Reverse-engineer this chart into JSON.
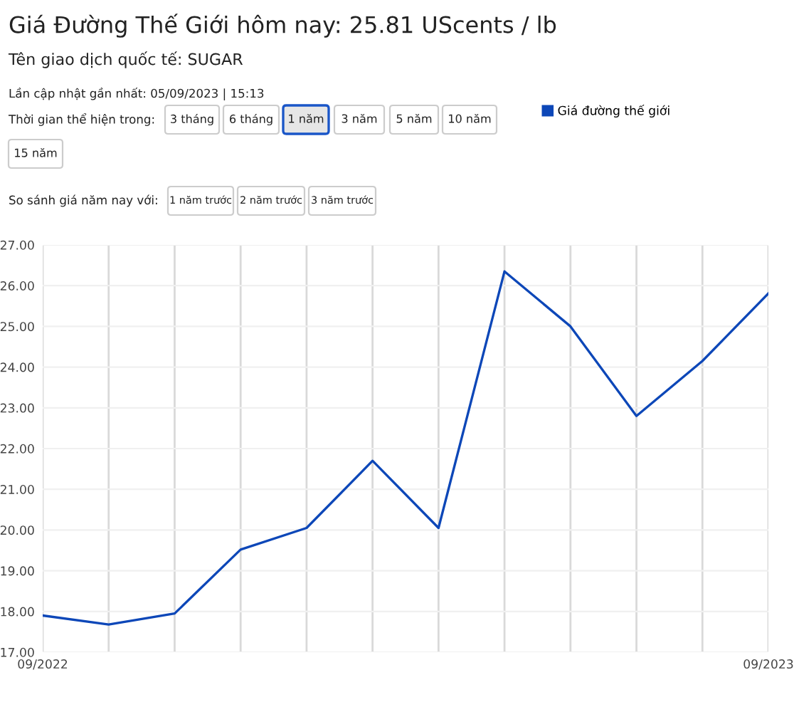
{
  "chart_data": {
    "type": "line",
    "title": "Giá Đường Thế Giới hôm nay: 25.81 UScents / lb",
    "subtitle": "Tên giao dịch quốc tế: SUGAR",
    "annotations": [
      "Lần cập nhật gần nhất: 05/09/2023 | 15:13",
      "Thời gian thể hiện trong:",
      "3 tháng",
      "6 tháng",
      "1 năm",
      "3 năm",
      "5 năm",
      "10 năm",
      "15 năm",
      "So sánh giá năm nay với:",
      "1 năm trước",
      "2 năm trước",
      "3 năm trước"
    ],
    "categories": [
      "09/2022",
      null,
      null,
      null,
      null,
      null,
      null,
      null,
      null,
      null,
      null,
      "09/2023"
    ],
    "series": [
      {
        "name": "Giá đường thế giới",
        "color": "#0d47b8",
        "values": [
          17.9,
          17.68,
          17.95,
          19.52,
          20.05,
          21.7,
          20.05,
          26.35,
          25.0,
          22.8,
          24.15,
          25.81
        ]
      }
    ],
    "ylim": [
      17,
      27
    ],
    "yticks": [
      {
        "value": 17,
        "label": "17.00"
      },
      {
        "value": 18,
        "label": "18.00"
      },
      {
        "value": 19,
        "label": "19.00"
      },
      {
        "value": 20,
        "label": "20.00"
      },
      {
        "value": 21,
        "label": "21.00"
      },
      {
        "value": 22,
        "label": "22.00"
      },
      {
        "value": 23,
        "label": "23.00"
      },
      {
        "value": 24,
        "label": "24.00"
      },
      {
        "value": 25,
        "label": "25.00"
      },
      {
        "value": 26,
        "label": "26.00"
      },
      {
        "value": 27,
        "label": "27.00"
      }
    ],
    "grid": true,
    "legend": "top right",
    "marker": "none",
    "line_style": "solid"
  }
}
